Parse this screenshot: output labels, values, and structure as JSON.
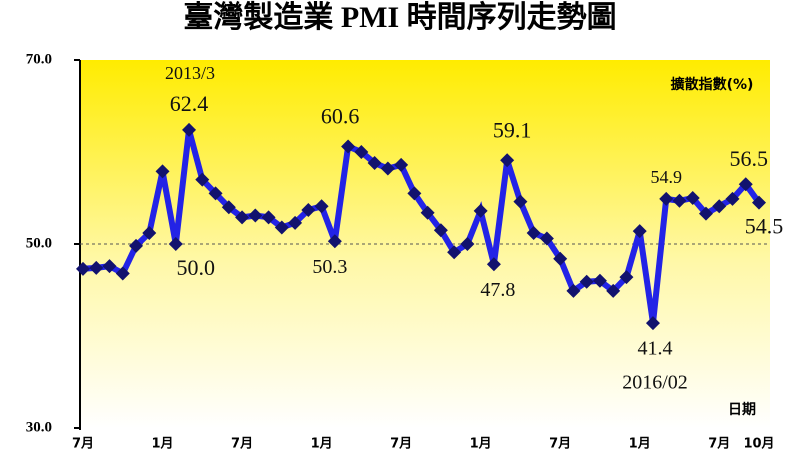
{
  "chart_data": {
    "type": "line",
    "title": "臺灣製造業 PMI 時間序列走勢圖",
    "y_label": "擴散指數(%)",
    "x_label": "日期",
    "categories": [
      "7月",
      null,
      null,
      null,
      null,
      null,
      "1月",
      null,
      null,
      null,
      null,
      null,
      "7月",
      null,
      null,
      null,
      null,
      null,
      "1月",
      null,
      null,
      null,
      null,
      null,
      "7月",
      null,
      null,
      null,
      null,
      null,
      "1月",
      null,
      null,
      null,
      null,
      null,
      "7月",
      null,
      null,
      null,
      null,
      null,
      "1月",
      null,
      null,
      null,
      null,
      null,
      "7月",
      null,
      null,
      "10月"
    ],
    "values": [
      47.3,
      47.4,
      47.6,
      46.8,
      49.8,
      51.2,
      57.9,
      50.0,
      62.4,
      57.0,
      55.5,
      54.0,
      52.9,
      53.1,
      52.9,
      51.8,
      52.3,
      53.7,
      54.1,
      50.3,
      60.6,
      60.0,
      58.8,
      58.2,
      58.6,
      55.5,
      53.4,
      51.5,
      49.1,
      50.0,
      53.6,
      47.8,
      59.1,
      54.6,
      51.2,
      50.6,
      48.4,
      44.9,
      45.9,
      46.0,
      44.9,
      46.4,
      51.4,
      41.4,
      54.9,
      54.7,
      55.0,
      53.3,
      54.1,
      54.9,
      56.5,
      54.5
    ],
    "value_labels": [
      null,
      null,
      null,
      null,
      null,
      null,
      null,
      "50.0",
      "62.4",
      null,
      null,
      null,
      null,
      null,
      null,
      null,
      null,
      null,
      null,
      "50.3",
      "60.6",
      null,
      null,
      null,
      null,
      null,
      null,
      null,
      null,
      null,
      null,
      "47.8",
      "59.1",
      null,
      null,
      null,
      null,
      null,
      null,
      null,
      null,
      null,
      null,
      "41.4",
      "54.9",
      null,
      null,
      null,
      null,
      null,
      "56.5",
      "54.5"
    ],
    "annotations": [
      "2013/3",
      "2016/02"
    ],
    "color": "#2323e6",
    "marker_color": "#12126e",
    "ylim": [
      30,
      70
    ],
    "yticks": [
      {
        "value": 30,
        "label": "30.0"
      },
      {
        "value": 50,
        "label": "50.0"
      },
      {
        "value": 70,
        "label": "70.0"
      }
    ],
    "reference_line": 50,
    "grid": false
  }
}
